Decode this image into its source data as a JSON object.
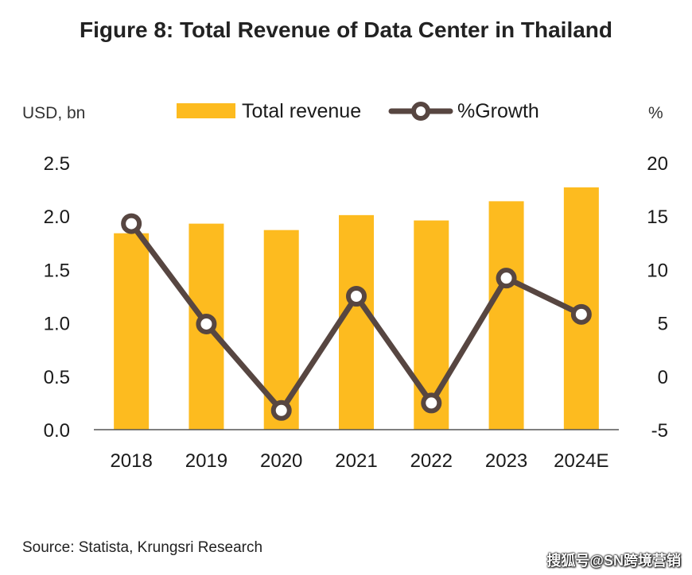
{
  "title": "Figure 8: Total Revenue of Data Center in Thailand",
  "source": "Source: Statista, Krungsri Research",
  "watermark": "搜狐号@SN跨境营销",
  "colors": {
    "bar": "#FDBB1F",
    "line": "#574641",
    "axis": "#555555"
  },
  "chart_data": {
    "type": "bar",
    "categories": [
      "2018",
      "2019",
      "2020",
      "2021",
      "2022",
      "2023",
      "2024E"
    ],
    "series": [
      {
        "name": "Total revenue",
        "type": "bar",
        "axis": "left",
        "values": [
          1.84,
          1.93,
          1.87,
          2.01,
          1.96,
          2.14,
          2.27
        ]
      },
      {
        "name": "%Growth",
        "type": "line",
        "axis": "right",
        "values": [
          14.3,
          4.9,
          -3.2,
          7.5,
          -2.5,
          9.2,
          5.8
        ]
      }
    ],
    "left_axis": {
      "label": "USD, bn",
      "min": 0,
      "max": 2.5,
      "ticks": [
        "0.0",
        "0.5",
        "1.0",
        "1.5",
        "2.0",
        "2.5"
      ]
    },
    "right_axis": {
      "label": "%",
      "min": -5,
      "max": 20,
      "ticks": [
        "-5",
        "0",
        "5",
        "10",
        "15",
        "20"
      ]
    },
    "legend": {
      "placement": "top",
      "entries": [
        "Total revenue",
        "%Growth"
      ]
    },
    "grid": false
  }
}
